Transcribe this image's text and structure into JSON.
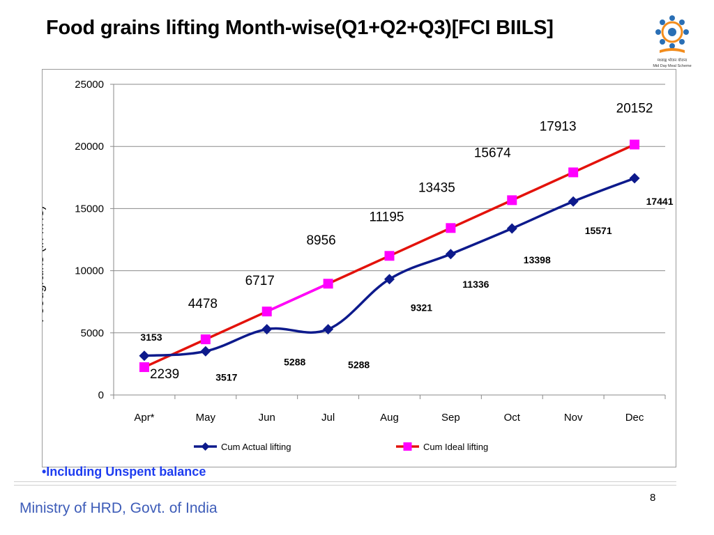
{
  "slide": {
    "title": "Food grains lifting Month-wise(Q1+Q2+Q3)[FCI BIILS]",
    "logo_caption_line1": "मध्याह्न भोजन योजना",
    "logo_caption_line2": "Mid Day Meal Scheme",
    "footnote": "•Including Unspent balance",
    "footer": "Ministry of HRD, Govt. of India",
    "page_number": "8"
  },
  "chart_data": {
    "type": "line",
    "title": "",
    "xlabel": "",
    "ylabel": "Foodgrains (in MTs)",
    "categories": [
      "Apr*",
      "May",
      "Jun",
      "Jul",
      "Aug",
      "Sep",
      "Oct",
      "Nov",
      "Dec"
    ],
    "ylim": [
      0,
      25000
    ],
    "yticks": [
      0,
      5000,
      10000,
      15000,
      20000,
      25000
    ],
    "grid": true,
    "legend_position": "bottom",
    "series": [
      {
        "name": "Cum Actual lifting",
        "values": [
          3153,
          3517,
          5288,
          5288,
          9321,
          11336,
          13398,
          15571,
          17441
        ],
        "labels": [
          "3153",
          "3517",
          "5288",
          "5288",
          "9321",
          "11336",
          "13398",
          "15571",
          "17441"
        ],
        "color": "#0d1a8c",
        "marker": "diamond"
      },
      {
        "name": "Cum Ideal lifting",
        "values": [
          2239,
          4478,
          6717,
          8956,
          11195,
          13435,
          15674,
          17913,
          20152
        ],
        "labels": [
          "2239",
          "4478",
          "6717",
          "8956",
          "11195",
          "13435",
          "15674",
          "17913",
          "20152"
        ],
        "color": "#e3120b",
        "highlight_segment_color": "#ff00ff",
        "marker": "square",
        "marker_color": "#ff00ff"
      }
    ]
  }
}
